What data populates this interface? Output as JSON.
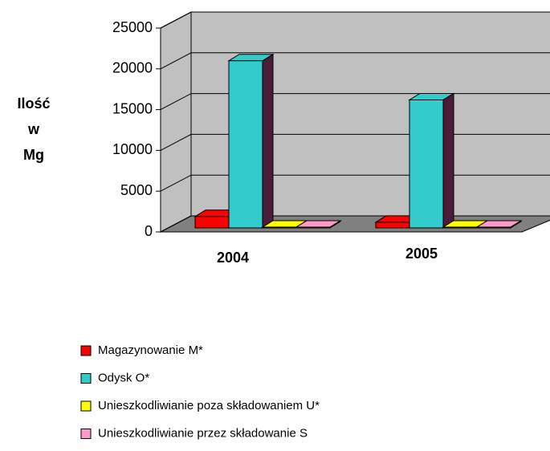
{
  "chart_data": {
    "type": "bar3d",
    "y_label": [
      "Ilość",
      "w",
      "Mg"
    ],
    "categories": [
      "2004",
      "2005"
    ],
    "series": [
      {
        "name": "Magazynowanie M*",
        "color": "#ff0000",
        "side": "#800000",
        "values": [
          1400,
          700
        ]
      },
      {
        "name": "Odysk O*",
        "color": "#33cccc",
        "side": "#4b1c37",
        "values": [
          20500,
          15700
        ]
      },
      {
        "name": "Unieszkodliwianie poza składowaniem U*",
        "color": "#ffff00",
        "side": "#808000",
        "values": [
          100,
          100
        ]
      },
      {
        "name": "Unieszkodliwianie przez składowanie S",
        "color": "#ff99cc",
        "side": "#804c66",
        "values": [
          100,
          100
        ]
      }
    ],
    "ylim": [
      0,
      25000
    ],
    "yticks": [
      0,
      5000,
      10000,
      15000,
      20000,
      25000
    ],
    "grid": true
  }
}
